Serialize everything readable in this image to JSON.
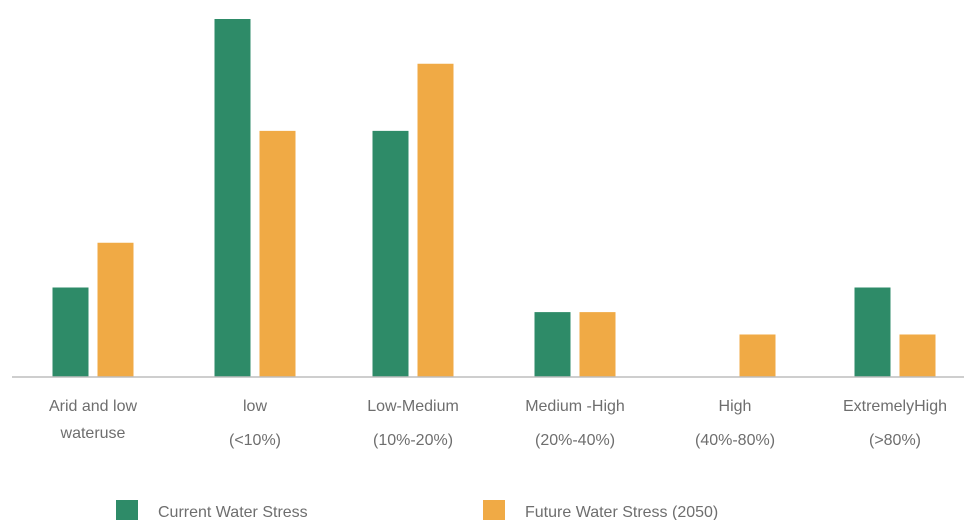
{
  "chart_data": {
    "type": "bar",
    "categories": [
      [
        "Arid and low",
        "wateruse"
      ],
      [
        "low",
        "(<10%)"
      ],
      [
        "Low-Medium",
        "(10%-20%)"
      ],
      [
        "Medium -High",
        "(20%-40%)"
      ],
      [
        "High",
        "(40%-80%)"
      ],
      [
        "ExtremelyHigh",
        "(>80%)"
      ]
    ],
    "series": [
      {
        "name": "Current Water Stress",
        "color": "#2e8b68",
        "values": [
          4,
          16,
          11,
          2.9,
          0,
          4
        ]
      },
      {
        "name": "Future Water Stress (2050)",
        "color": "#f0aa45",
        "values": [
          6,
          11,
          14,
          2.9,
          1.9,
          1.9
        ]
      }
    ],
    "ylim": [
      0,
      16
    ],
    "grid": false,
    "legend_position": "bottom",
    "axis_color": "#bdbdbd"
  }
}
